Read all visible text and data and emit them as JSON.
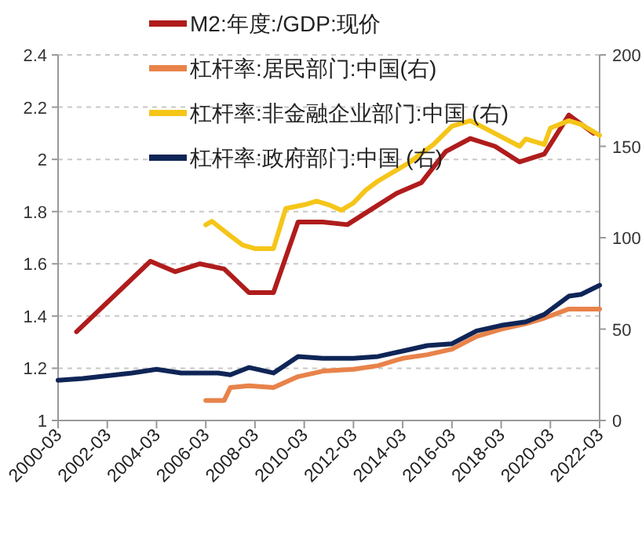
{
  "chart_data": {
    "type": "line",
    "xlim": [
      "2000-03",
      "2022-03"
    ],
    "xticks": [
      "2000-03",
      "2002-03",
      "2004-03",
      "2006-03",
      "2008-03",
      "2010-03",
      "2012-03",
      "2014-03",
      "2016-03",
      "2018-03",
      "2020-03",
      "2022-03"
    ],
    "ylim": [
      1,
      2.4
    ],
    "yticks": [
      1,
      1.2,
      1.4,
      1.6,
      1.8,
      2,
      2.2,
      2.4
    ],
    "y2lim": [
      0,
      200
    ],
    "y2ticks": [
      0,
      50,
      100,
      150,
      200
    ],
    "grid": "y",
    "legend": "top left",
    "line_style": "solid",
    "marker": "none",
    "series": [
      {
        "name": "M2:年度:/GDP:现价",
        "color": "#b01c1c",
        "x": [
          "2000-12",
          "2003-12",
          "2004-12",
          "2005-12",
          "2006-12",
          "2007-12",
          "2008-12",
          "2009-12",
          "2010-12",
          "2011-12",
          "2012-12",
          "2013-12",
          "2014-12",
          "2015-12",
          "2016-12",
          "2017-12",
          "2018-12",
          "2019-12",
          "2020-12",
          "2021-12"
        ],
        "values": [
          1.34,
          1.61,
          1.57,
          1.6,
          1.58,
          1.49,
          1.49,
          1.76,
          1.76,
          1.75,
          1.81,
          1.87,
          1.91,
          2.03,
          2.08,
          2.05,
          1.99,
          2.02,
          2.17,
          2.1
        ]
      },
      {
        "name": "杠杆率:居民部门:中国(右)",
        "color": "#e8834a",
        "axis": "y2",
        "x": [
          "2006-03",
          "2006-12",
          "2007-03",
          "2007-12",
          "2008-12",
          "2009-12",
          "2010-12",
          "2012-03",
          "2013-03",
          "2014-03",
          "2015-03",
          "2016-03",
          "2017-03",
          "2018-03",
          "2019-03",
          "2019-12",
          "2020-12",
          "2022-03"
        ],
        "values": [
          11,
          11,
          18,
          19,
          18,
          24,
          27,
          28,
          30,
          34,
          36,
          39,
          46,
          50,
          53,
          56,
          61,
          61
        ]
      },
      {
        "name": "杠杆率:非金融企业部门:中国 (右)",
        "color": "#f5c518",
        "axis": "y2",
        "x": [
          "2006-03",
          "2006-06",
          "2007-03",
          "2007-09",
          "2008-03",
          "2008-12",
          "2009-06",
          "2010-03",
          "2010-09",
          "2011-03",
          "2011-09",
          "2012-03",
          "2012-09",
          "2013-03",
          "2014-06",
          "2015-06",
          "2016-03",
          "2016-12",
          "2017-12",
          "2018-12",
          "2019-03",
          "2019-12",
          "2020-03",
          "2020-12",
          "2021-06",
          "2022-03"
        ],
        "values": [
          107,
          109,
          101,
          96,
          94,
          94,
          116,
          118,
          120,
          118,
          115,
          119,
          126,
          131,
          141,
          151,
          161,
          164,
          157,
          150,
          154,
          151,
          160,
          164,
          162,
          156
        ]
      },
      {
        "name": "杠杆率:政府部门:中国 (右)",
        "color": "#0f2557",
        "axis": "y2",
        "x": [
          "2000-03",
          "2001-03",
          "2003-03",
          "2004-03",
          "2005-03",
          "2006-09",
          "2007-03",
          "2007-12",
          "2008-12",
          "2009-12",
          "2010-12",
          "2012-03",
          "2013-03",
          "2014-03",
          "2015-03",
          "2016-03",
          "2017-03",
          "2018-03",
          "2019-03",
          "2019-12",
          "2020-12",
          "2021-06",
          "2022-03"
        ],
        "values": [
          22,
          23,
          26,
          28,
          26,
          26,
          25,
          29,
          26,
          35,
          34,
          34,
          35,
          38,
          41,
          42,
          49,
          52,
          54,
          58,
          68,
          69,
          74
        ]
      }
    ]
  }
}
